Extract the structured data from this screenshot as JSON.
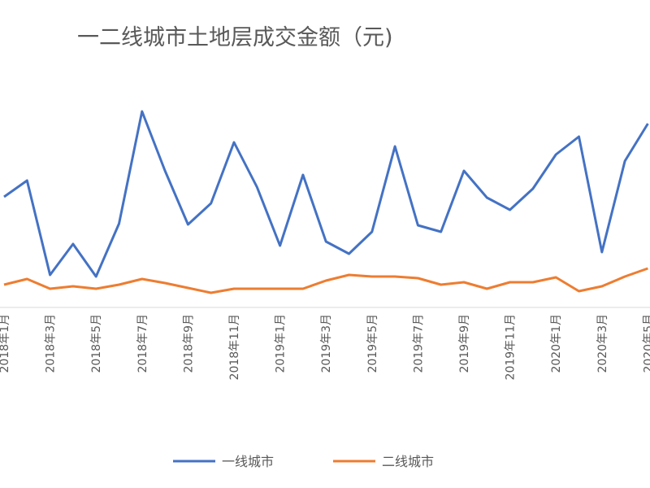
{
  "chart_data": {
    "type": "line",
    "title": "一二线城市土地层成交金额（元)",
    "categories": [
      "2018年1月",
      null,
      "2018年3月",
      null,
      "2018年5月",
      null,
      "2018年7月",
      null,
      "2018年9月",
      null,
      "2018年11月",
      null,
      "2019年1月",
      null,
      "2019年3月",
      null,
      "2019年5月",
      null,
      "2019年7月",
      null,
      "2019年9月",
      null,
      "2019年11月",
      null,
      "2020年1月",
      null,
      "2020年3月",
      null,
      "2020年5月"
    ],
    "series": [
      {
        "name": "一线城市",
        "color": "#4472c4",
        "values": [
          128,
          148,
          32,
          70,
          30,
          95,
          233,
          160,
          94,
          120,
          195,
          140,
          68,
          155,
          73,
          58,
          85,
          190,
          93,
          85,
          160,
          127,
          112,
          138,
          180,
          202,
          60,
          172,
          218
        ]
      },
      {
        "name": "二线城市",
        "color": "#ed7d31",
        "values": [
          20,
          27,
          15,
          18,
          15,
          20,
          27,
          22,
          16,
          10,
          15,
          15,
          15,
          15,
          25,
          32,
          30,
          30,
          28,
          20,
          23,
          15,
          23,
          23,
          29,
          12,
          18,
          30,
          40
        ]
      }
    ],
    "ylim": [
      0,
      370
    ]
  }
}
